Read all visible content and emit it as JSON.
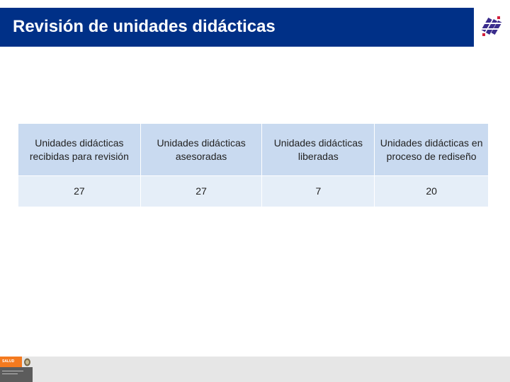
{
  "header": {
    "title": "Revisión de unidades didácticas",
    "logo_icon": "institution-logo-icon",
    "bg_color": "#003087"
  },
  "table": {
    "headers": [
      "Unidades didácticas recibidas para revisión",
      "Unidades didácticas asesoradas",
      "Unidades didácticas liberadas",
      "Unidades didácticas en proceso de rediseño"
    ],
    "values": [
      "27",
      "27",
      "7",
      "20"
    ],
    "header_bg": "#c9daf0",
    "row_bg": "#e5eef8"
  },
  "footer": {
    "badge_label": "SALUD",
    "badge_color": "#f47a1f",
    "seal_icon": "coat-of-arms-icon"
  }
}
